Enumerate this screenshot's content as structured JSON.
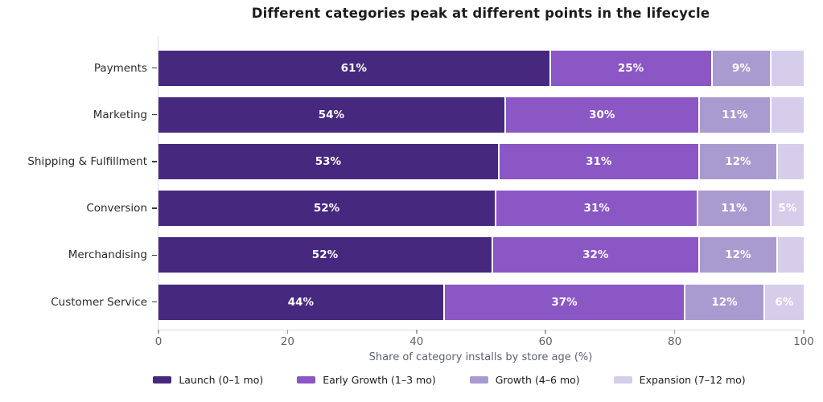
{
  "title": "Different categories peak at different points in the lifecycle",
  "chart_data": {
    "type": "bar",
    "orientation": "horizontal",
    "stacked": true,
    "title": "Different categories peak at different points in the lifecycle",
    "categories": [
      "Payments",
      "Marketing",
      "Shipping & Fulfillment",
      "Conversion",
      "Merchandising",
      "Customer Service"
    ],
    "series": [
      {
        "name": "Launch (0–1 mo)",
        "color": "#46297e",
        "values": [
          61,
          54,
          53,
          52,
          52,
          44
        ],
        "labels": [
          "61%",
          "54%",
          "53%",
          "52%",
          "52%",
          "44%"
        ]
      },
      {
        "name": "Early Growth (1–3 mo)",
        "color": "#8a57c4",
        "values": [
          25,
          30,
          31,
          31,
          32,
          37
        ],
        "labels": [
          "25%",
          "30%",
          "31%",
          "31%",
          "32%",
          "37%"
        ]
      },
      {
        "name": "Growth (4–6 mo)",
        "color": "#a99bd0",
        "values": [
          9,
          11,
          12,
          11,
          12,
          12
        ],
        "labels": [
          "9%",
          "11%",
          "12%",
          "11%",
          "12%",
          "12%"
        ]
      },
      {
        "name": "Expansion (7–12 mo)",
        "color": "#d5cde9",
        "values": [
          5,
          5,
          4,
          5,
          4,
          6
        ],
        "labels": [
          "",
          "",
          "",
          "5%",
          "",
          "6%"
        ]
      }
    ],
    "xlabel": "Share of category installs by store age (%)",
    "xticks": [
      0,
      20,
      40,
      60,
      80,
      100
    ],
    "xlim": [
      0,
      100
    ],
    "grid": false,
    "legend_position": "bottom",
    "bar_label_color": "#ffffff",
    "axis_text_color": "#5b6271",
    "category_text_color": "#2b2b2b"
  }
}
